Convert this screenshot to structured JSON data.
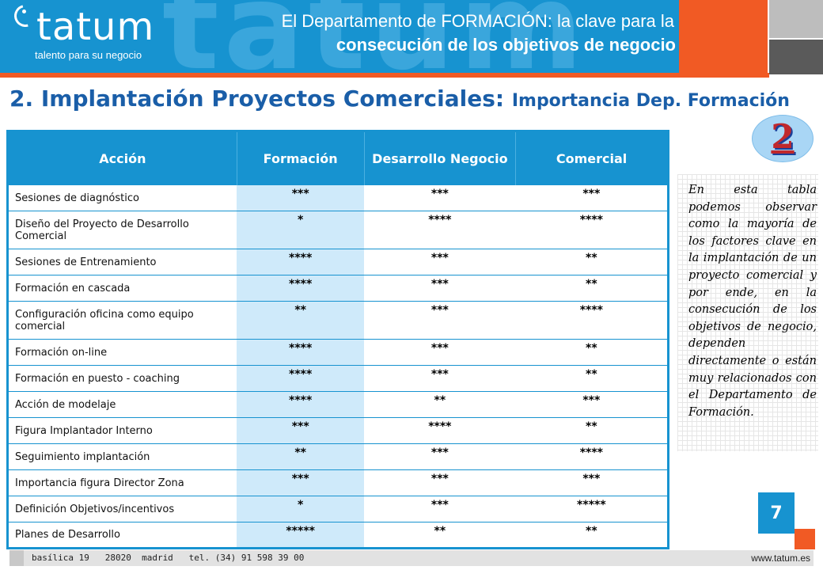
{
  "brand": {
    "watermark": "tatum",
    "logo_word": "tatum",
    "tagline": "talento para su negocio"
  },
  "header": {
    "title_line1": "El Departamento de FORMACIÓN: la clave para la",
    "title_line2": "consecución de los objetivos de negocio"
  },
  "heading": {
    "main": "2. Implantación Proyectos Comerciales:",
    "sub": "Importancia Dep. Formación"
  },
  "badge_number": "2",
  "table": {
    "headers": [
      "Acción",
      "Formación",
      "Desarrollo Negocio",
      "Comercial"
    ],
    "rows": [
      {
        "accion": "Sesiones de diagnóstico",
        "formacion": "***",
        "desarrollo": "***",
        "comercial": "***"
      },
      {
        "accion": "Diseño del Proyecto de Desarrollo Comercial",
        "formacion": "*",
        "desarrollo": "****",
        "comercial": "****"
      },
      {
        "accion": "Sesiones de Entrenamiento",
        "formacion": "****",
        "desarrollo": "***",
        "comercial": "**"
      },
      {
        "accion": "Formación en cascada",
        "formacion": "****",
        "desarrollo": "***",
        "comercial": "**"
      },
      {
        "accion": "Configuración oficina como equipo comercial",
        "formacion": "**",
        "desarrollo": "***",
        "comercial": "****"
      },
      {
        "accion": "Formación on-line",
        "formacion": "****",
        "desarrollo": "***",
        "comercial": "**"
      },
      {
        "accion": "Formación en puesto - coaching",
        "formacion": "****",
        "desarrollo": "***",
        "comercial": "**"
      },
      {
        "accion": "Acción de modelaje",
        "formacion": "****",
        "desarrollo": "**",
        "comercial": "***"
      },
      {
        "accion": "Figura Implantador Interno",
        "formacion": "***",
        "desarrollo": "****",
        "comercial": "**"
      },
      {
        "accion": "Seguimiento implantación",
        "formacion": "**",
        "desarrollo": "***",
        "comercial": "****"
      },
      {
        "accion": "Importancia figura Director Zona",
        "formacion": "***",
        "desarrollo": "***",
        "comercial": "***"
      },
      {
        "accion": "Definición Objetivos/incentivos",
        "formacion": "*",
        "desarrollo": "***",
        "comercial": "*****"
      },
      {
        "accion": "Planes de Desarrollo",
        "formacion": "*****",
        "desarrollo": "**",
        "comercial": "**"
      }
    ]
  },
  "note": "En esta tabla podemos observar como la mayoría de los factores clave en la implantación de un proyecto comercial y por ende, en la consecución de los objetivos de negocio, dependen directamente o están muy relacionados con el Departamento de Formación.",
  "page_number": "7",
  "footer": {
    "address": "basílica 19   28020  madrid   tel. (34) 91 598 39 00",
    "website": "www.tatum.es"
  },
  "colors": {
    "primary_blue": "#1793d0",
    "heading_blue": "#1a5ea8",
    "orange": "#f15a24",
    "light_blue_cell": "#cfeafa"
  }
}
